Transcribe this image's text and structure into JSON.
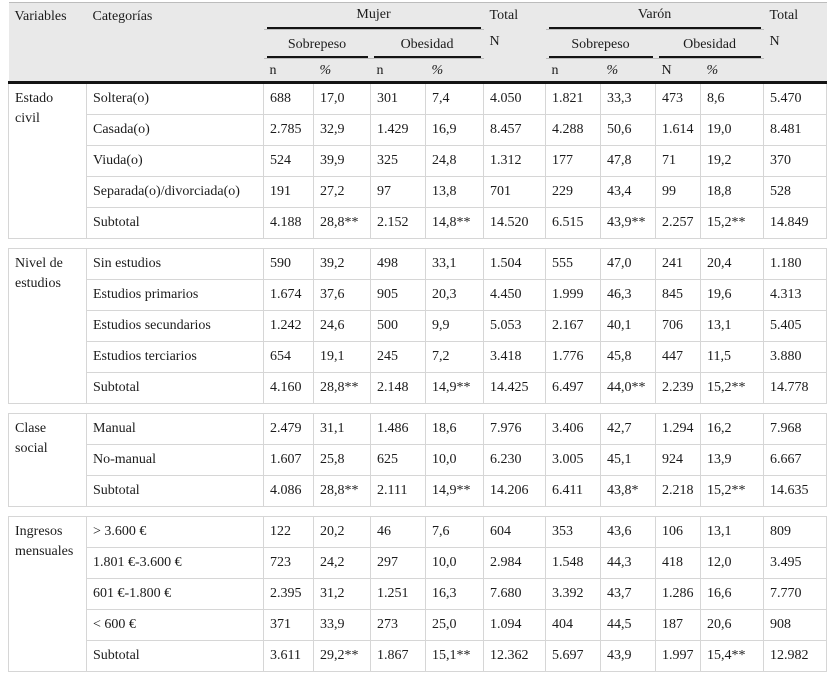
{
  "table": {
    "header": {
      "variables": "Variables",
      "categorias": "Categorías",
      "group_mujer": "Mujer",
      "group_varon": "Varón",
      "total_label": "Total",
      "total_sub_label": "N",
      "sobrepeso": "Sobrepeso",
      "obesidad": "Obesidad",
      "mujer_subcols": [
        "n",
        "%",
        "n",
        "%"
      ],
      "varon_subcols": [
        "n",
        "%",
        "N",
        "%"
      ]
    },
    "sections": [
      {
        "variable": "Estado civil",
        "rows": [
          {
            "category": "Soltera(o)",
            "values": [
              "688",
              "17,0",
              "301",
              "7,4",
              "4.050",
              "1.821",
              "33,3",
              "473",
              "8,6",
              "5.470"
            ]
          },
          {
            "category": "Casada(o)",
            "values": [
              "2.785",
              "32,9",
              "1.429",
              "16,9",
              "8.457",
              "4.288",
              "50,6",
              "1.614",
              "19,0",
              "8.481"
            ]
          },
          {
            "category": "Viuda(o)",
            "values": [
              "524",
              "39,9",
              "325",
              "24,8",
              "1.312",
              "177",
              "47,8",
              "71",
              "19,2",
              "370"
            ]
          },
          {
            "category": "Separada(o)/divorciada(o)",
            "values": [
              "191",
              "27,2",
              "97",
              "13,8",
              "701",
              "229",
              "43,4",
              "99",
              "18,8",
              "528"
            ]
          },
          {
            "category": "Subtotal",
            "values": [
              "4.188",
              "28,8**",
              "2.152",
              "14,8**",
              "14.520",
              "6.515",
              "43,9**",
              "2.257",
              "15,2**",
              "14.849"
            ]
          }
        ]
      },
      {
        "variable": "Nivel de estudios",
        "rows": [
          {
            "category": "Sin estudios",
            "values": [
              "590",
              "39,2",
              "498",
              "33,1",
              "1.504",
              "555",
              "47,0",
              "241",
              "20,4",
              "1.180"
            ]
          },
          {
            "category": "Estudios primarios",
            "values": [
              "1.674",
              "37,6",
              "905",
              "20,3",
              "4.450",
              "1.999",
              "46,3",
              "845",
              "19,6",
              "4.313"
            ]
          },
          {
            "category": "Estudios secundarios",
            "values": [
              "1.242",
              "24,6",
              "500",
              "9,9",
              "5.053",
              "2.167",
              "40,1",
              "706",
              "13,1",
              "5.405"
            ]
          },
          {
            "category": "Estudios terciarios",
            "values": [
              "654",
              "19,1",
              "245",
              "7,2",
              "3.418",
              "1.776",
              "45,8",
              "447",
              "11,5",
              "3.880"
            ]
          },
          {
            "category": "Subtotal",
            "values": [
              "4.160",
              "28,8**",
              "2.148",
              "14,9**",
              "14.425",
              "6.497",
              "44,0**",
              "2.239",
              "15,2**",
              "14.778"
            ]
          }
        ]
      },
      {
        "variable": "Clase social",
        "rows": [
          {
            "category": "Manual",
            "values": [
              "2.479",
              "31,1",
              "1.486",
              "18,6",
              "7.976",
              "3.406",
              "42,7",
              "1.294",
              "16,2",
              "7.968"
            ]
          },
          {
            "category": "No-manual",
            "values": [
              "1.607",
              "25,8",
              "625",
              "10,0",
              "6.230",
              "3.005",
              "45,1",
              "924",
              "13,9",
              "6.667"
            ]
          },
          {
            "category": "Subtotal",
            "values": [
              "4.086",
              "28,8**",
              "2.111",
              "14,9**",
              "14.206",
              "6.411",
              "43,8*",
              "2.218",
              "15,2**",
              "14.635"
            ]
          }
        ]
      },
      {
        "variable": "Ingresos mensuales",
        "rows": [
          {
            "category": "> 3.600 €",
            "values": [
              "122",
              "20,2",
              "46",
              "7,6",
              "604",
              "353",
              "43,6",
              "106",
              "13,1",
              "809"
            ]
          },
          {
            "category": "1.801 €-3.600 €",
            "values": [
              "723",
              "24,2",
              "297",
              "10,0",
              "2.984",
              "1.548",
              "44,3",
              "418",
              "12,0",
              "3.495"
            ]
          },
          {
            "category": "601 €-1.800 €",
            "values": [
              "2.395",
              "31,2",
              "1.251",
              "16,3",
              "7.680",
              "3.392",
              "43,7",
              "1.286",
              "16,6",
              "7.770"
            ]
          },
          {
            "category": "< 600 €",
            "values": [
              "371",
              "33,9",
              "273",
              "25,0",
              "1.094",
              "404",
              "44,5",
              "187",
              "20,6",
              "908"
            ]
          },
          {
            "category": "Subtotal",
            "values": [
              "3.611",
              "29,2**",
              "1.867",
              "15,1**",
              "12.362",
              "5.697",
              "43,9",
              "1.997",
              "15,4**",
              "12.982"
            ]
          }
        ]
      }
    ]
  }
}
